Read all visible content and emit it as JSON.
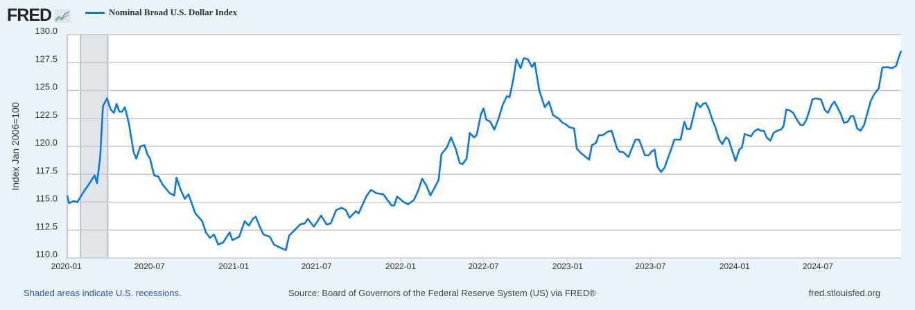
{
  "logo": {
    "text": "FRED"
  },
  "chart_data": {
    "type": "line",
    "title": "",
    "legend": [
      "Nominal Broad U.S. Dollar Index"
    ],
    "legend_placement": "top-left",
    "ylabel": "Index Jan 2006=100",
    "xlabel": "",
    "ylim": [
      110,
      130
    ],
    "yticks": [
      "110.0",
      "112.5",
      "115.0",
      "117.5",
      "120.0",
      "122.5",
      "125.0",
      "127.5",
      "130.0"
    ],
    "xticks": [
      "2020-01",
      "2020-07",
      "2021-01",
      "2021-07",
      "2022-01",
      "2022-07",
      "2023-01",
      "2023-07",
      "2024-01",
      "2024-07"
    ],
    "xlim": [
      "2020-01-03",
      "2024-12-30"
    ],
    "grid": "horizontal",
    "line_color": "#0a78e6",
    "recession_color": "#e1e5ea",
    "recessions": [
      [
        "2020-02-01",
        "2020-04-01"
      ]
    ],
    "series": [
      {
        "name": "Nominal Broad U.S. Dollar Index",
        "x": [
          "2020-01-03",
          "2020-01-07",
          "2020-01-17",
          "2020-01-25",
          "2020-02-09",
          "2020-02-16",
          "2020-03-03",
          "2020-03-08",
          "2020-03-15",
          "2020-03-21",
          "2020-03-30",
          "2020-04-07",
          "2020-04-14",
          "2020-04-20",
          "2020-04-26",
          "2020-05-02",
          "2020-05-08",
          "2020-05-17",
          "2020-05-27",
          "2020-06-02",
          "2020-06-11",
          "2020-06-20",
          "2020-06-26",
          "2020-07-02",
          "2020-07-11",
          "2020-07-20",
          "2020-07-29",
          "2020-08-04",
          "2020-08-14",
          "2020-08-24",
          "2020-08-29",
          "2020-09-07",
          "2020-09-16",
          "2020-09-24",
          "2020-10-09",
          "2020-10-24",
          "2020-11-01",
          "2020-11-10",
          "2020-11-19",
          "2020-11-28",
          "2020-12-09",
          "2020-12-23",
          "2020-12-29",
          "2021-01-13",
          "2021-01-25",
          "2021-02-03",
          "2021-02-12",
          "2021-02-18",
          "2021-02-27",
          "2021-03-07",
          "2021-03-21",
          "2021-03-30",
          "2021-04-14",
          "2021-04-25",
          "2021-05-02",
          "2021-05-14",
          "2021-05-26",
          "2021-06-05",
          "2021-06-12",
          "2021-06-25",
          "2021-07-05",
          "2021-07-11",
          "2021-07-23",
          "2021-08-01",
          "2021-08-13",
          "2021-08-25",
          "2021-09-03",
          "2021-09-11",
          "2021-09-25",
          "2021-10-01",
          "2021-10-19",
          "2021-10-28",
          "2021-11-09",
          "2021-11-24",
          "2021-12-03",
          "2021-12-12",
          "2021-12-18",
          "2021-12-24",
          "2022-01-08",
          "2022-01-17",
          "2022-01-30",
          "2022-02-08",
          "2022-02-17",
          "2022-02-26",
          "2022-03-07",
          "2022-03-25",
          "2022-03-31",
          "2022-04-12",
          "2022-04-21",
          "2022-05-01",
          "2022-05-10",
          "2022-05-16",
          "2022-05-25",
          "2022-06-01",
          "2022-06-10",
          "2022-06-16",
          "2022-06-25",
          "2022-07-01",
          "2022-07-07",
          "2022-07-16",
          "2022-07-25",
          "2022-08-03",
          "2022-08-12",
          "2022-08-21",
          "2022-08-27",
          "2022-09-05",
          "2022-09-11",
          "2022-09-20",
          "2022-09-27",
          "2022-10-06",
          "2022-10-15",
          "2022-10-21",
          "2022-10-31",
          "2022-11-12",
          "2022-11-21",
          "2022-11-30",
          "2022-12-12",
          "2022-12-21",
          "2022-12-27",
          "2023-01-05",
          "2023-01-15",
          "2023-01-21",
          "2023-01-30",
          "2023-02-11",
          "2023-02-17",
          "2023-02-23",
          "2023-03-04",
          "2023-03-10",
          "2023-03-19",
          "2023-03-29",
          "2023-04-07",
          "2023-04-19",
          "2023-04-25",
          "2023-05-02",
          "2023-05-14",
          "2023-05-29",
          "2023-06-06",
          "2023-06-19",
          "2023-06-27",
          "2023-07-04",
          "2023-07-10",
          "2023-07-16",
          "2023-07-24",
          "2023-08-01",
          "2023-08-09",
          "2023-08-16",
          "2023-08-22",
          "2023-09-05",
          "2023-09-13",
          "2023-09-19",
          "2023-09-26",
          "2023-10-10",
          "2023-10-18",
          "2023-10-24",
          "2023-10-30",
          "2023-11-06",
          "2023-11-14",
          "2023-11-20",
          "2023-11-28",
          "2023-12-05",
          "2023-12-13",
          "2023-12-19",
          "2023-12-27",
          "2024-01-03",
          "2024-01-11",
          "2024-01-17",
          "2024-01-23",
          "2024-02-06",
          "2024-02-12",
          "2024-02-21",
          "2024-02-27",
          "2024-03-05",
          "2024-03-11",
          "2024-03-19",
          "2024-03-26",
          "2024-04-03",
          "2024-04-11",
          "2024-04-17",
          "2024-04-23",
          "2024-05-01",
          "2024-05-08",
          "2024-05-16",
          "2024-05-24",
          "2024-05-30",
          "2024-06-05",
          "2024-06-11",
          "2024-06-19",
          "2024-06-26",
          "2024-07-08",
          "2024-07-16",
          "2024-07-23",
          "2024-07-31",
          "2024-08-06",
          "2024-08-12",
          "2024-08-20",
          "2024-08-27",
          "2024-09-04",
          "2024-09-11",
          "2024-09-17",
          "2024-09-25",
          "2024-10-02",
          "2024-10-10",
          "2024-10-16",
          "2024-10-24",
          "2024-10-31",
          "2024-11-11",
          "2024-11-19",
          "2024-11-29",
          "2024-12-10",
          "2024-12-19",
          "2024-12-25",
          "2024-12-30"
        ],
        "y": [
          115.6,
          114.9,
          115.1,
          115.0,
          116.0,
          116.4,
          117.4,
          116.7,
          119.0,
          123.6,
          124.3,
          123.3,
          123.0,
          123.8,
          123.1,
          123.1,
          123.5,
          122.0,
          119.5,
          118.9,
          120.0,
          120.1,
          119.3,
          118.9,
          117.4,
          117.3,
          116.6,
          116.3,
          115.8,
          115.6,
          117.2,
          116.1,
          115.3,
          115.7,
          114.0,
          113.3,
          112.3,
          111.8,
          112.1,
          111.2,
          111.4,
          112.3,
          111.6,
          111.9,
          113.3,
          112.9,
          113.5,
          113.7,
          112.8,
          112.1,
          111.9,
          111.2,
          110.9,
          110.7,
          112.0,
          112.5,
          113.0,
          113.1,
          113.5,
          112.8,
          113.4,
          113.8,
          113.0,
          113.1,
          114.3,
          114.5,
          114.3,
          113.6,
          114.2,
          114.0,
          115.6,
          116.1,
          115.8,
          115.7,
          115.2,
          114.7,
          114.7,
          115.5,
          115.0,
          114.8,
          115.2,
          116.0,
          117.1,
          116.5,
          115.6,
          117.0,
          119.3,
          119.9,
          120.8,
          119.8,
          118.5,
          118.4,
          118.9,
          121.2,
          120.8,
          121.0,
          122.8,
          123.4,
          122.4,
          122.2,
          121.5,
          122.5,
          123.7,
          124.5,
          124.4,
          126.2,
          127.8,
          127.0,
          127.9,
          127.8,
          127.1,
          127.5,
          125.0,
          123.5,
          124.0,
          122.8,
          122.5,
          122.1,
          122.0,
          121.7,
          121.6,
          119.8,
          119.4,
          119.0,
          118.8,
          120.1,
          120.3,
          121.0,
          121.0,
          121.3,
          121.4,
          119.8,
          119.5,
          119.5,
          119.05,
          120.6,
          120.6,
          119.2,
          119.2,
          119.55,
          119.7,
          118.2,
          117.7,
          118.1,
          119.05,
          119.8,
          120.6,
          120.6,
          122.2,
          121.55,
          121.55,
          123.9,
          123.5,
          123.8,
          123.9,
          123.3,
          122.3,
          121.7,
          120.6,
          120.2,
          120.8,
          120.6,
          119.55,
          118.7,
          119.7,
          119.9,
          121.1,
          120.9,
          121.3,
          121.55,
          121.4,
          121.4,
          120.8,
          120.5,
          121.2,
          121.4,
          121.5,
          121.8,
          123.3,
          123.2,
          123.0,
          122.4,
          121.9,
          121.9,
          122.3,
          123.0,
          124.2,
          124.3,
          124.2,
          123.25,
          123.0,
          123.7,
          124.0,
          123.55,
          122.9,
          122.1,
          122.2,
          122.7,
          122.7,
          121.6,
          121.4,
          121.9,
          122.8,
          124.0,
          124.6,
          125.2,
          127.05,
          127.1,
          127.0,
          127.2,
          128.0,
          128.55
        ]
      }
    ]
  },
  "footer": {
    "recession_note": "Shaded areas indicate U.S. recessions.",
    "source": "Source: Board of Governors of the Federal Reserve System (US) via FRED®",
    "site": "fred.stlouisfed.org"
  }
}
